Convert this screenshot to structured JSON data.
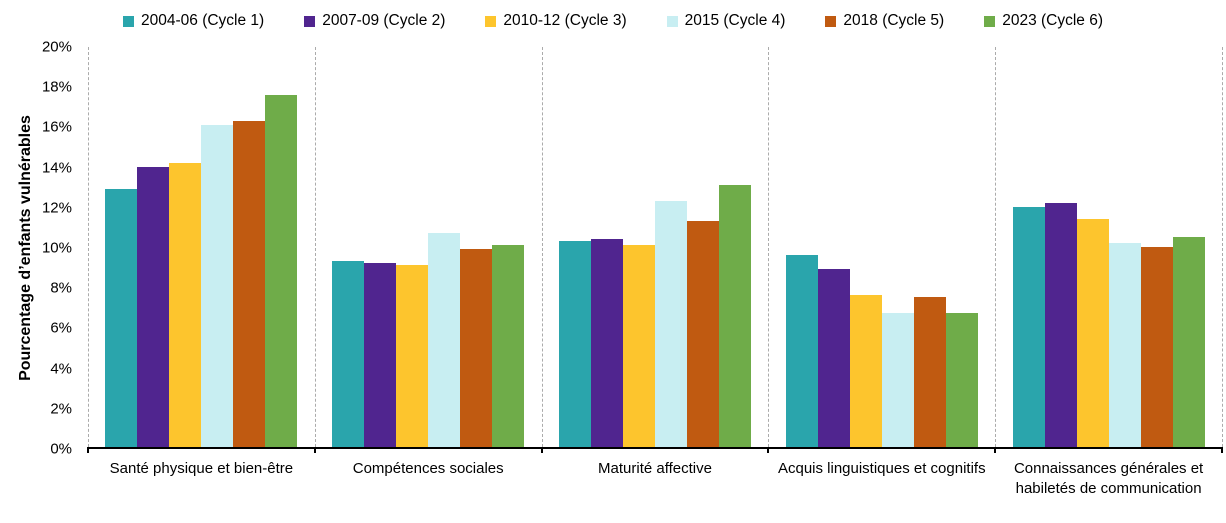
{
  "chart_data": {
    "type": "bar",
    "title": "",
    "xlabel": "",
    "ylabel": "Pourcentage d’enfants vulnérables",
    "ylim": [
      0,
      20
    ],
    "ytick_step": 2,
    "ytick_suffix": "%",
    "legend_position": "top",
    "grid": "vertical dashed separators between category groups, no horizontal gridlines",
    "categories": [
      "Santé physique et bien-être",
      "Compétences sociales",
      "Maturité affective",
      "Acquis linguistiques et cognitifs",
      "Connaissances générales et habiletés de communication"
    ],
    "series": [
      {
        "name": "2004-06 (Cycle 1)",
        "color": "#2AA5AC",
        "values": [
          12.9,
          9.3,
          10.3,
          9.6,
          12.0
        ]
      },
      {
        "name": "2007-09 (Cycle 2)",
        "color": "#50258F",
        "values": [
          14.0,
          9.2,
          10.4,
          8.9,
          12.2
        ]
      },
      {
        "name": "2010-12 (Cycle 3)",
        "color": "#FDC52D",
        "values": [
          14.2,
          9.1,
          10.1,
          7.6,
          11.4
        ]
      },
      {
        "name": "2015 (Cycle 4)",
        "color": "#C8EEF2",
        "values": [
          16.1,
          10.7,
          12.3,
          6.7,
          10.2
        ]
      },
      {
        "name": "2018 (Cycle 5)",
        "color": "#C05A11",
        "values": [
          16.3,
          9.9,
          11.3,
          7.5,
          10.0
        ]
      },
      {
        "name": "2023 (Cycle 6)",
        "color": "#6FAC49",
        "values": [
          17.6,
          10.1,
          13.1,
          6.7,
          10.5
        ]
      }
    ],
    "colors": {
      "axis_line": "#000000",
      "separator_line": "#ababab",
      "text": "#000000",
      "background": "#ffffff"
    }
  }
}
